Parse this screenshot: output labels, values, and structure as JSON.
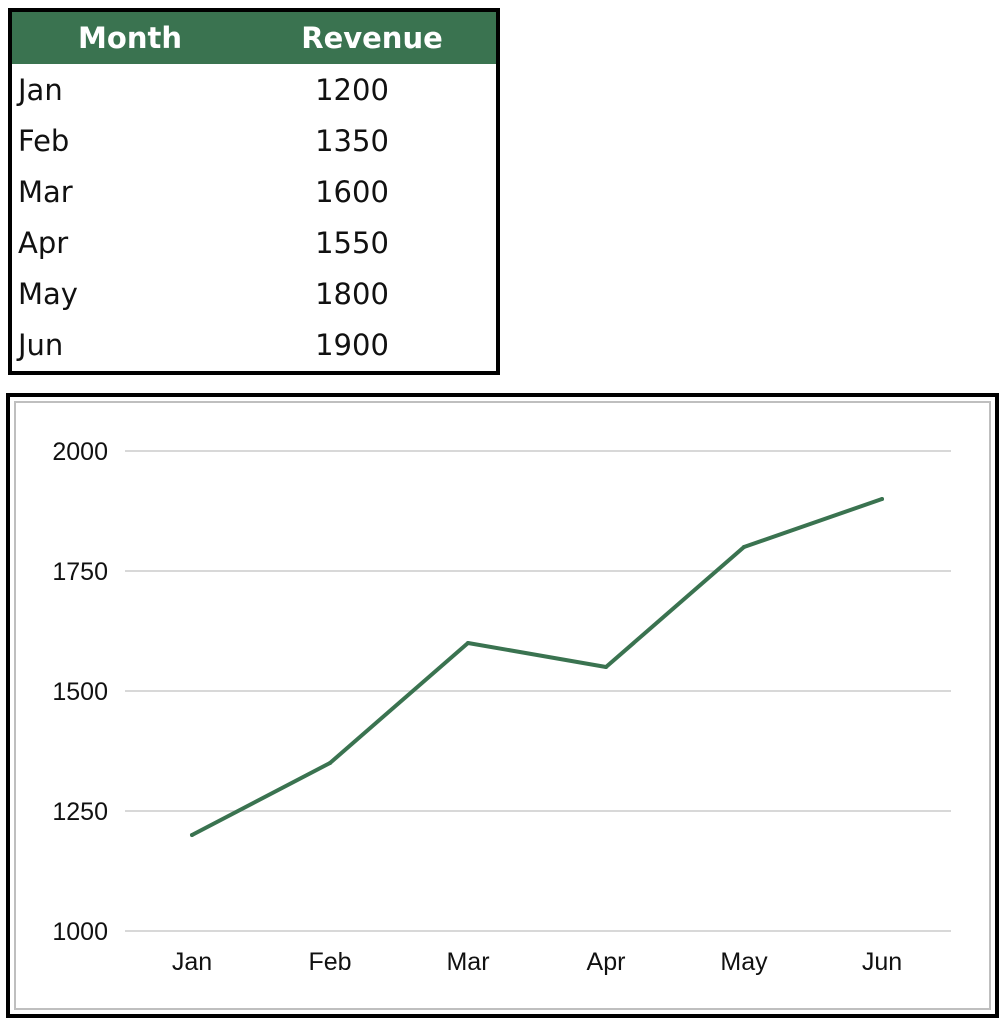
{
  "table": {
    "headers": {
      "month": "Month",
      "revenue": "Revenue"
    },
    "rows": [
      {
        "month": "Jan",
        "revenue": "1200"
      },
      {
        "month": "Feb",
        "revenue": "1350"
      },
      {
        "month": "Mar",
        "revenue": "1600"
      },
      {
        "month": "Apr",
        "revenue": "1550"
      },
      {
        "month": "May",
        "revenue": "1800"
      },
      {
        "month": "Jun",
        "revenue": "1900"
      }
    ]
  },
  "colors": {
    "header_bg": "#3a7350",
    "line": "#3a7350",
    "grid": "#cccccc"
  },
  "chart_data": {
    "type": "line",
    "title": "",
    "xlabel": "",
    "ylabel": "",
    "categories": [
      "Jan",
      "Feb",
      "Mar",
      "Apr",
      "May",
      "Jun"
    ],
    "series": [
      {
        "values": [
          1200,
          1350,
          1600,
          1550,
          1800,
          1900
        ]
      }
    ],
    "ylim": [
      1000,
      2000
    ],
    "yticks": [
      1000,
      1250,
      1500,
      1750,
      2000
    ],
    "grid": true,
    "legend": "none"
  }
}
